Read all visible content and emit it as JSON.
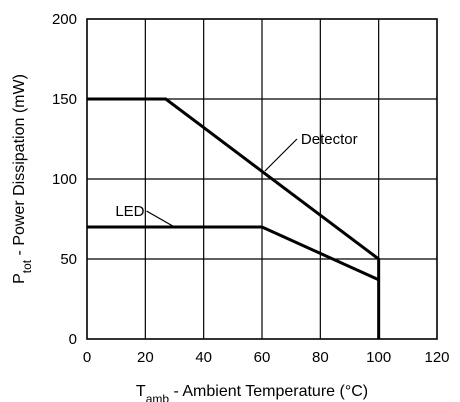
{
  "chart_data": {
    "type": "line",
    "title": "",
    "xlabel": {
      "main": "T",
      "sub": "amb",
      "rest": " -  Ambient Temperature (°C)"
    },
    "ylabel": {
      "main": "P",
      "sub": "tot",
      "rest": " - Power Dissipation (mW)"
    },
    "xlim": [
      0,
      120
    ],
    "ylim": [
      0,
      200
    ],
    "xticks": [
      0,
      20,
      40,
      60,
      80,
      100,
      120
    ],
    "yticks": [
      0,
      50,
      100,
      150,
      200
    ],
    "grid": true,
    "series": [
      {
        "name": "Detector",
        "x": [
          0,
          27,
          100,
          100
        ],
        "y": [
          150,
          150,
          50,
          0
        ]
      },
      {
        "name": "LED",
        "x": [
          0,
          60,
          100
        ],
        "y": [
          70,
          70,
          37
        ]
      }
    ],
    "annotations": [
      {
        "text": "Detector",
        "series": 0,
        "at": [
          61,
          105
        ]
      },
      {
        "text": "LED",
        "series": 1,
        "at": [
          30,
          70
        ]
      }
    ]
  }
}
